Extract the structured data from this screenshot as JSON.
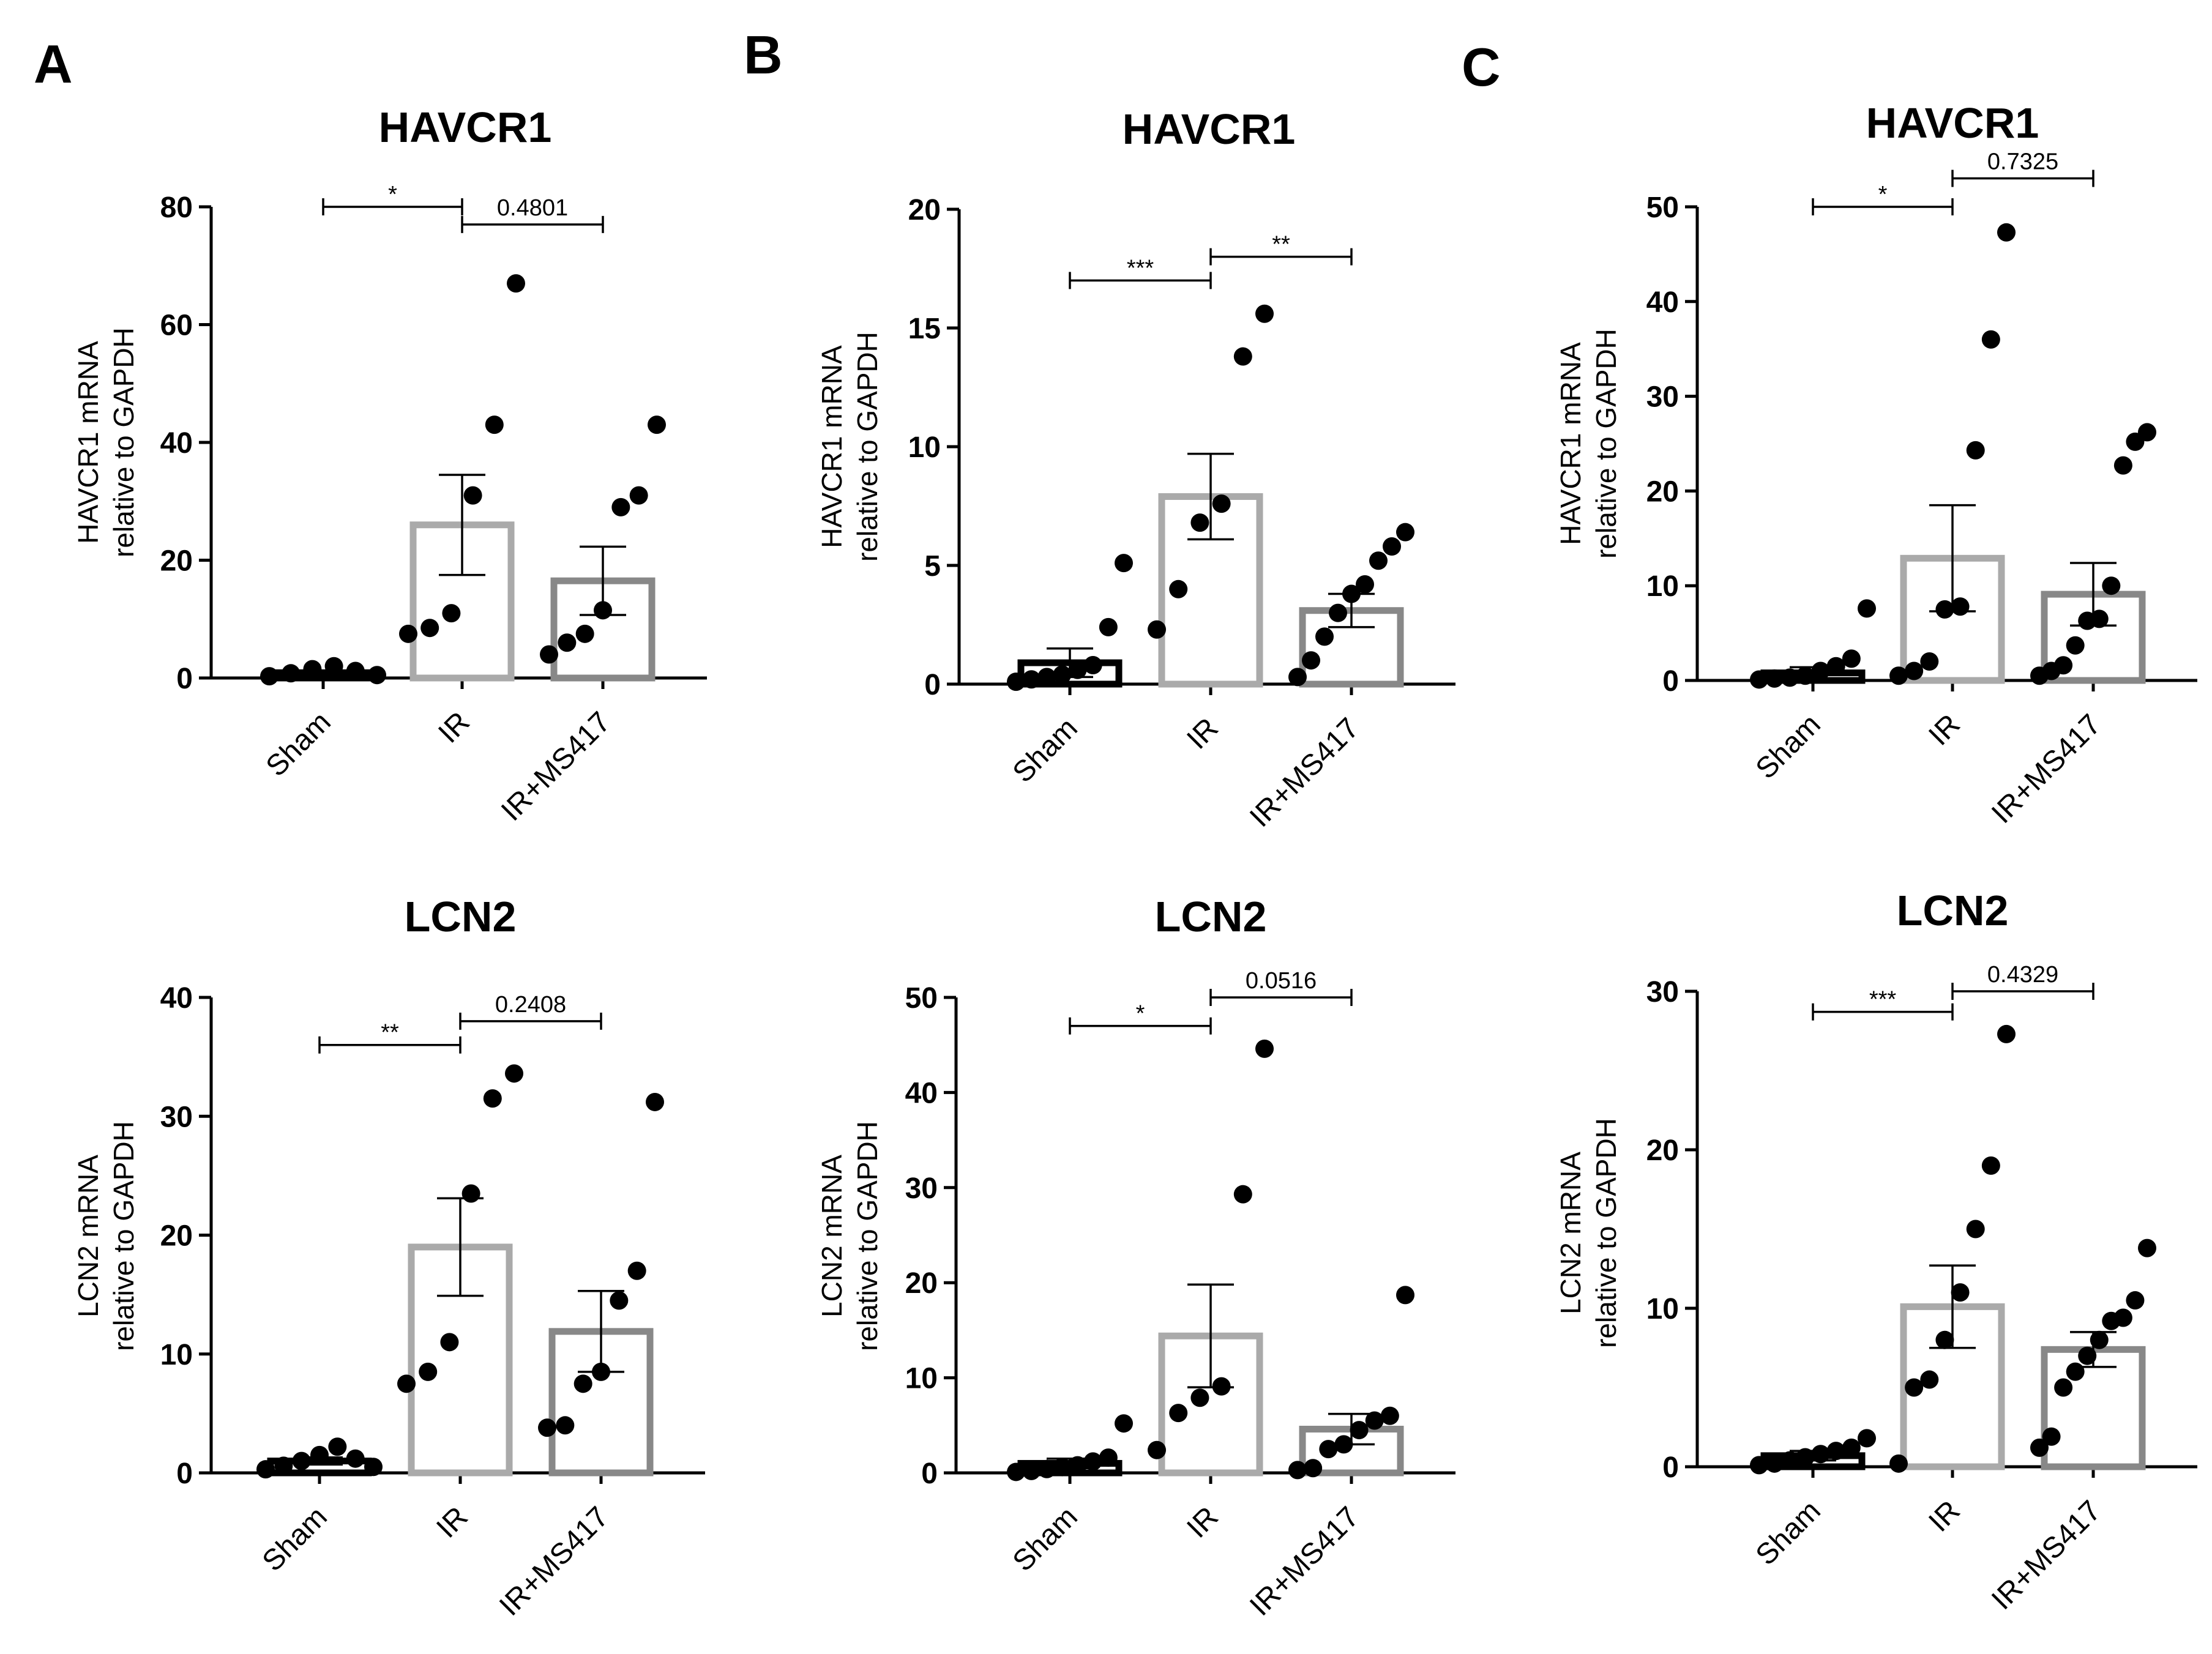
{
  "figure": {
    "panel_labels": [
      "A",
      "B",
      "C"
    ]
  },
  "chart_data": [
    {
      "id": "A-HAVCR1",
      "type": "bar",
      "panel": "A",
      "title": "HAVCR1",
      "ylabel": [
        "HAVCR1 mRNA",
        "relative to GAPDH"
      ],
      "xlabel": "",
      "categories": [
        "Sham",
        "IR",
        "IR+MS417"
      ],
      "ylim": [
        0,
        80
      ],
      "yticks": [
        0,
        20,
        40,
        60,
        80
      ],
      "means": [
        0.9,
        26.0,
        16.5
      ],
      "sem": [
        0.3,
        8.5,
        5.8
      ],
      "points": [
        [
          0.3,
          0.8,
          1.5,
          2.0,
          1.2,
          0.5
        ],
        [
          7.5,
          8.5,
          11.0,
          31.0,
          43.0,
          67.0
        ],
        [
          4.0,
          6.0,
          7.5,
          11.5,
          29.0,
          31.0,
          43.0
        ]
      ],
      "comparisons": [
        {
          "from": 0,
          "to": 1,
          "label": "*",
          "level": 80
        },
        {
          "from": 1,
          "to": 2,
          "label": "0.4801",
          "level": 77
        }
      ]
    },
    {
      "id": "B-HAVCR1",
      "type": "bar",
      "panel": "B",
      "title": "HAVCR1",
      "ylabel": [
        "HAVCR1 mRNA",
        "relative to GAPDH"
      ],
      "xlabel": "",
      "categories": [
        "Sham",
        "IR",
        "IR+MS417"
      ],
      "ylim": [
        0,
        20
      ],
      "yticks": [
        0,
        5,
        10,
        15,
        20
      ],
      "means": [
        0.9,
        7.9,
        3.1
      ],
      "sem": [
        0.6,
        1.8,
        0.7
      ],
      "points": [
        [
          0.1,
          0.2,
          0.3,
          0.4,
          0.6,
          0.8,
          2.4,
          5.1
        ],
        [
          2.3,
          4.0,
          6.8,
          7.6,
          13.8,
          15.6
        ],
        [
          0.3,
          1.0,
          2.0,
          3.0,
          3.8,
          4.2,
          5.2,
          5.8,
          6.4
        ]
      ],
      "comparisons": [
        {
          "from": 0,
          "to": 1,
          "label": "***",
          "level": 17.0
        },
        {
          "from": 1,
          "to": 2,
          "label": "**",
          "level": 18.0
        }
      ]
    },
    {
      "id": "C-HAVCR1",
      "type": "bar",
      "panel": "C",
      "title": "HAVCR1",
      "ylabel": [
        "HAVCR1 mRNA",
        "relative to GAPDH"
      ],
      "xlabel": "",
      "categories": [
        "Sham",
        "IR",
        "IR+MS417"
      ],
      "ylim": [
        0,
        50
      ],
      "yticks": [
        0,
        10,
        20,
        30,
        40,
        50
      ],
      "means": [
        0.8,
        12.9,
        9.1
      ],
      "sem": [
        0.6,
        5.6,
        3.3
      ],
      "points": [
        [
          0.1,
          0.2,
          0.3,
          0.5,
          1.0,
          1.5,
          2.3,
          7.6
        ],
        [
          0.5,
          1.0,
          2.0,
          7.5,
          7.8,
          24.3,
          36.0,
          47.3
        ],
        [
          0.5,
          1.0,
          1.6,
          3.7,
          6.3,
          6.5,
          10.0,
          22.7,
          25.2,
          26.2
        ]
      ],
      "comparisons": [
        {
          "from": 0,
          "to": 1,
          "label": "*",
          "level": 50.0
        },
        {
          "from": 1,
          "to": 2,
          "label": "0.7325",
          "level": 53.0
        }
      ]
    },
    {
      "id": "A-LCN2",
      "type": "bar",
      "panel": "A",
      "title": "LCN2",
      "ylabel": [
        "LCN2 mRNA",
        "relative to GAPDH"
      ],
      "xlabel": "",
      "categories": [
        "Sham",
        "IR",
        "IR+MS417"
      ],
      "ylim": [
        0,
        40
      ],
      "yticks": [
        0,
        10,
        20,
        30,
        40
      ],
      "means": [
        1.0,
        19.0,
        11.9
      ],
      "sem": [
        0.3,
        4.1,
        3.4
      ],
      "points": [
        [
          0.3,
          0.6,
          1.0,
          1.5,
          2.2,
          1.2,
          0.5
        ],
        [
          7.5,
          8.5,
          11.0,
          23.5,
          31.5,
          33.6
        ],
        [
          3.8,
          4.0,
          7.5,
          8.5,
          14.5,
          17.0,
          31.2
        ]
      ],
      "comparisons": [
        {
          "from": 0,
          "to": 1,
          "label": "**",
          "level": 36.0
        },
        {
          "from": 1,
          "to": 2,
          "label": "0.2408",
          "level": 38.0
        }
      ]
    },
    {
      "id": "B-LCN2",
      "type": "bar",
      "panel": "B",
      "title": "LCN2",
      "ylabel": [
        "LCN2 mRNA",
        "relative to GAPDH"
      ],
      "xlabel": "",
      "categories": [
        "Sham",
        "IR",
        "IR+MS417"
      ],
      "ylim": [
        0,
        50
      ],
      "yticks": [
        0,
        10,
        20,
        30,
        40,
        50
      ],
      "means": [
        1.0,
        14.4,
        4.6
      ],
      "sem": [
        0.5,
        5.4,
        1.6
      ],
      "points": [
        [
          0.1,
          0.2,
          0.4,
          0.6,
          0.8,
          1.2,
          1.6,
          5.2
        ],
        [
          2.4,
          6.3,
          7.9,
          9.1,
          29.3,
          44.6
        ],
        [
          0.3,
          0.5,
          2.5,
          3.0,
          4.5,
          5.5,
          6.0,
          18.7
        ]
      ],
      "comparisons": [
        {
          "from": 0,
          "to": 1,
          "label": "*",
          "level": 47.0
        },
        {
          "from": 1,
          "to": 2,
          "label": "0.0516",
          "level": 50.0
        }
      ]
    },
    {
      "id": "C-LCN2",
      "type": "bar",
      "panel": "C",
      "title": "LCN2",
      "ylabel": [
        "LCN2 mRNA",
        "relative to GAPDH"
      ],
      "xlabel": "",
      "categories": [
        "Sham",
        "IR",
        "IR+MS417"
      ],
      "ylim": [
        0,
        30
      ],
      "yticks": [
        0,
        10,
        20,
        30
      ],
      "means": [
        0.7,
        10.1,
        7.4
      ],
      "sem": [
        0.3,
        2.6,
        1.1
      ],
      "points": [
        [
          0.1,
          0.2,
          0.4,
          0.6,
          0.8,
          1.0,
          1.2,
          1.8
        ],
        [
          0.2,
          5.0,
          5.5,
          8.0,
          11.0,
          15.0,
          19.0,
          27.3
        ],
        [
          1.2,
          1.9,
          5.0,
          6.0,
          7.0,
          8.0,
          9.2,
          9.4,
          10.5,
          13.8
        ]
      ],
      "comparisons": [
        {
          "from": 0,
          "to": 1,
          "label": "***",
          "level": 28.7
        },
        {
          "from": 1,
          "to": 2,
          "label": "0.4329",
          "level": 30.0
        }
      ]
    }
  ],
  "colors": {
    "bar_outline": [
      "#000000",
      "#aaaaaa",
      "#888888"
    ],
    "points": "#000000",
    "axis": "#000000"
  }
}
